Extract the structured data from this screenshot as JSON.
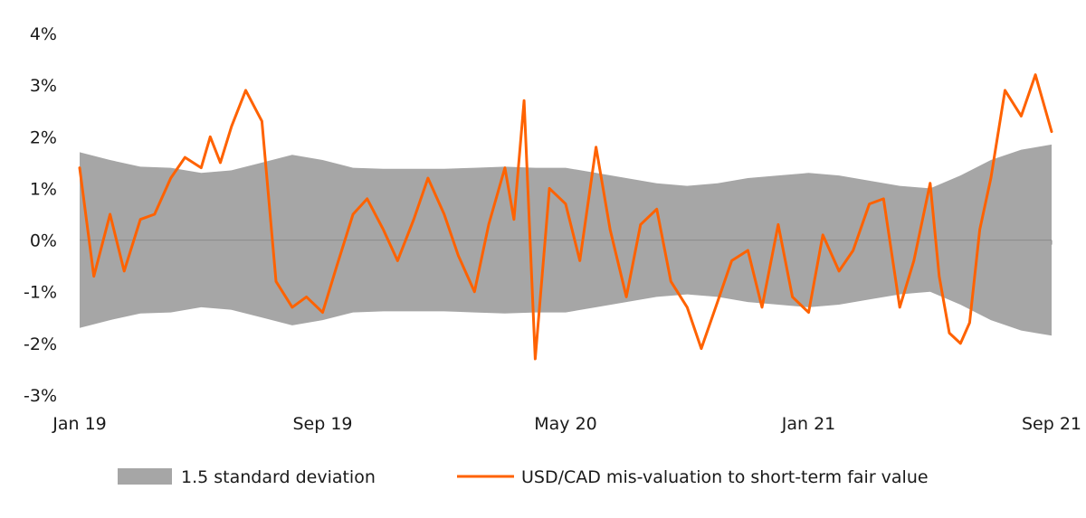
{
  "chart_data": {
    "type": "line",
    "title": "",
    "xlabel": "",
    "ylabel": "",
    "ylim": [
      -3,
      4
    ],
    "xlim": [
      "2019-01",
      "2021-09"
    ],
    "y_ticks": [
      {
        "value": 4,
        "label": "4%"
      },
      {
        "value": 3,
        "label": "3%"
      },
      {
        "value": 2,
        "label": "2%"
      },
      {
        "value": 1,
        "label": "1%"
      },
      {
        "value": 0,
        "label": "0%"
      },
      {
        "value": -1,
        "label": "-1%"
      },
      {
        "value": -2,
        "label": "-2%"
      },
      {
        "value": -3,
        "label": "-3%"
      }
    ],
    "x_ticks": [
      {
        "value": "2019-01",
        "label": "Jan 19"
      },
      {
        "value": "2019-09",
        "label": "Sep 19"
      },
      {
        "value": "2020-05",
        "label": "May 20"
      },
      {
        "value": "2021-01",
        "label": "Jan 21"
      },
      {
        "value": "2021-09",
        "label": "Sep 21"
      }
    ],
    "grid": false,
    "legend_position": "bottom",
    "series": [
      {
        "name": "1.5 standard deviation",
        "kind": "band",
        "color": "#a6a6a6",
        "x": [
          "2019-01",
          "2019-02",
          "2019-03",
          "2019-04",
          "2019-05",
          "2019-06",
          "2019-07",
          "2019-08",
          "2019-09",
          "2019-10",
          "2019-11",
          "2019-12",
          "2020-01",
          "2020-02",
          "2020-03",
          "2020-04",
          "2020-05",
          "2020-06",
          "2020-07",
          "2020-08",
          "2020-09",
          "2020-10",
          "2020-11",
          "2020-12",
          "2021-01",
          "2021-02",
          "2021-03",
          "2021-04",
          "2021-05",
          "2021-06",
          "2021-07",
          "2021-08",
          "2021-09"
        ],
        "upper": [
          1.7,
          1.55,
          1.42,
          1.4,
          1.3,
          1.35,
          1.5,
          1.65,
          1.55,
          1.4,
          1.38,
          1.38,
          1.38,
          1.4,
          1.42,
          1.4,
          1.4,
          1.3,
          1.2,
          1.1,
          1.05,
          1.1,
          1.2,
          1.25,
          1.3,
          1.25,
          1.15,
          1.05,
          1.0,
          1.25,
          1.55,
          1.75,
          1.85
        ],
        "lower": [
          -1.7,
          -1.55,
          -1.42,
          -1.4,
          -1.3,
          -1.35,
          -1.5,
          -1.65,
          -1.55,
          -1.4,
          -1.38,
          -1.38,
          -1.38,
          -1.4,
          -1.42,
          -1.4,
          -1.4,
          -1.3,
          -1.2,
          -1.1,
          -1.05,
          -1.1,
          -1.2,
          -1.25,
          -1.3,
          -1.25,
          -1.15,
          -1.05,
          -1.0,
          -1.25,
          -1.55,
          -1.75,
          -1.85
        ]
      },
      {
        "name": "USD/CAD mis-valuation to short-term fair value",
        "kind": "line",
        "color": "#ff6200",
        "x": [
          "2019-01",
          "2019-01-15",
          "2019-02",
          "2019-02-15",
          "2019-03",
          "2019-03-15",
          "2019-04",
          "2019-04-15",
          "2019-05",
          "2019-05-10",
          "2019-05-20",
          "2019-06",
          "2019-06-15",
          "2019-07",
          "2019-07-15",
          "2019-08",
          "2019-08-15",
          "2019-09",
          "2019-09-15",
          "2019-10",
          "2019-10-15",
          "2019-11",
          "2019-11-15",
          "2019-12",
          "2019-12-15",
          "2020-01",
          "2020-01-15",
          "2020-02",
          "2020-02-15",
          "2020-03",
          "2020-03-10",
          "2020-03-20",
          "2020-04",
          "2020-04-15",
          "2020-05",
          "2020-05-15",
          "2020-06",
          "2020-06-15",
          "2020-07",
          "2020-07-15",
          "2020-08",
          "2020-08-15",
          "2020-09",
          "2020-09-15",
          "2020-10",
          "2020-10-15",
          "2020-11",
          "2020-11-15",
          "2020-12",
          "2020-12-15",
          "2021-01",
          "2021-01-15",
          "2021-02",
          "2021-02-15",
          "2021-03",
          "2021-03-15",
          "2021-04",
          "2021-04-15",
          "2021-05",
          "2021-05-10",
          "2021-05-20",
          "2021-06",
          "2021-06-10",
          "2021-06-20",
          "2021-07",
          "2021-07-15",
          "2021-08",
          "2021-08-15",
          "2021-09"
        ],
        "values": [
          1.4,
          -0.7,
          0.5,
          -0.6,
          0.4,
          0.5,
          1.2,
          1.6,
          1.4,
          2.0,
          1.5,
          2.2,
          2.9,
          2.3,
          -0.8,
          -1.3,
          -1.1,
          -1.4,
          -0.5,
          0.5,
          0.8,
          0.2,
          -0.4,
          0.4,
          1.2,
          0.5,
          -0.3,
          -1.0,
          0.3,
          1.4,
          0.4,
          2.7,
          -2.3,
          1.0,
          0.7,
          -0.4,
          1.8,
          0.2,
          -1.1,
          0.3,
          0.6,
          -0.8,
          -1.3,
          -2.1,
          -1.2,
          -0.4,
          -0.2,
          -1.3,
          0.3,
          -1.1,
          -1.4,
          0.1,
          -0.6,
          -0.2,
          0.7,
          0.8,
          -1.3,
          -0.4,
          1.1,
          -0.7,
          -1.8,
          -2.0,
          -1.6,
          0.2,
          1.2,
          2.9,
          2.4,
          3.2,
          2.1
        ]
      }
    ]
  }
}
